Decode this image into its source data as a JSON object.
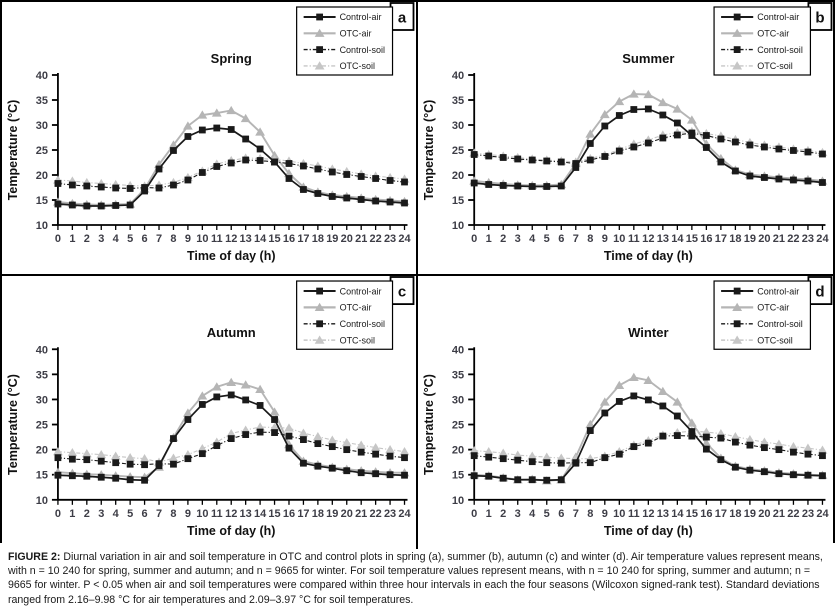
{
  "figure": {
    "caption_label": "FIGURE 2:",
    "caption_text": "Diurnal variation in air and soil temperature in OTC and control plots in spring (a), summer (b), autumn (c) and winter (d). Air temperature values represent means, with n = 10 240 for spring, summer and autumn; and n = 9665 for winter. For soil temperature values represent means, with n = 10 240 for spring, summer and autumn; n = 9665 for winter. P < 0.05 when air and soil temperatures were compared within three hour intervals in each the four seasons (Wilcoxon signed-rank test). Standard deviations ranged from 2.16–9.98 °C for air temperatures and 2.09–3.97 °C for soil temperatures."
  },
  "colors": {
    "series_black": "#1a1a1a",
    "series_gray": "#b5b5b5",
    "axis": "#000000",
    "tick_label": "#3d3d46",
    "background": "#ffffff"
  },
  "chart_data": [
    {
      "type": "line",
      "panel_label": "a",
      "title": "Spring",
      "xlabel": "Time of day (h)",
      "ylabel": "Temperature (°C)",
      "x": [
        0,
        1,
        2,
        3,
        4,
        5,
        6,
        7,
        8,
        9,
        10,
        11,
        12,
        13,
        14,
        15,
        16,
        17,
        18,
        19,
        20,
        21,
        22,
        23,
        24
      ],
      "ylim": [
        10,
        40
      ],
      "yticks": [
        10,
        15,
        20,
        25,
        30,
        35,
        40
      ],
      "grid": false,
      "legend_position": "top-right",
      "legend": [
        "Control-air",
        "OTC-air",
        "Control-soil",
        "OTC-soil"
      ],
      "series": [
        {
          "name": "Control-air",
          "values": [
            14.2,
            14.0,
            13.8,
            13.8,
            13.9,
            14.0,
            16.8,
            21.2,
            24.9,
            27.7,
            29.0,
            29.4,
            29.1,
            27.2,
            25.2,
            22.6,
            19.3,
            17.1,
            16.3,
            15.7,
            15.4,
            15.1,
            14.8,
            14.6,
            14.4
          ]
        },
        {
          "name": "OTC-air",
          "values": [
            14.6,
            14.3,
            14.1,
            14.0,
            14.1,
            14.2,
            17.2,
            22.1,
            26.0,
            29.8,
            32.0,
            32.4,
            32.9,
            31.3,
            28.6,
            23.9,
            20.3,
            17.6,
            16.6,
            16.0,
            15.7,
            15.4,
            15.1,
            14.9,
            14.7
          ]
        },
        {
          "name": "Control-soil",
          "values": [
            18.3,
            18.0,
            17.8,
            17.6,
            17.4,
            17.3,
            17.5,
            17.4,
            18.0,
            19.0,
            20.5,
            21.7,
            22.4,
            23.0,
            22.9,
            22.6,
            22.3,
            21.8,
            21.2,
            20.6,
            20.1,
            19.7,
            19.3,
            18.9,
            18.6
          ]
        },
        {
          "name": "OTC-soil",
          "values": [
            19.0,
            18.8,
            18.5,
            18.3,
            18.1,
            17.9,
            17.8,
            18.0,
            18.5,
            19.5,
            20.8,
            22.2,
            22.9,
            23.4,
            23.3,
            23.1,
            22.8,
            22.3,
            21.8,
            21.2,
            20.7,
            20.2,
            19.8,
            19.5,
            19.2
          ]
        }
      ]
    },
    {
      "type": "line",
      "panel_label": "b",
      "title": "Summer",
      "xlabel": "Time of day (h)",
      "ylabel": "Temperature (°C)",
      "x": [
        0,
        1,
        2,
        3,
        4,
        5,
        6,
        7,
        8,
        9,
        10,
        11,
        12,
        13,
        14,
        15,
        16,
        17,
        18,
        19,
        20,
        21,
        22,
        23,
        24
      ],
      "ylim": [
        10,
        40
      ],
      "yticks": [
        10,
        15,
        20,
        25,
        30,
        35,
        40
      ],
      "grid": false,
      "legend_position": "top-right",
      "legend": [
        "Control-air",
        "OTC-air",
        "Control-soil",
        "OTC-soil"
      ],
      "series": [
        {
          "name": "Control-air",
          "values": [
            18.4,
            18.1,
            17.9,
            17.8,
            17.7,
            17.7,
            17.8,
            21.5,
            26.3,
            29.8,
            31.9,
            33.1,
            33.2,
            32.0,
            30.4,
            27.9,
            25.5,
            22.6,
            20.8,
            19.8,
            19.5,
            19.2,
            19.0,
            18.8,
            18.5
          ]
        },
        {
          "name": "OTC-air",
          "values": [
            18.8,
            18.5,
            18.2,
            18.0,
            17.9,
            17.9,
            18.1,
            22.3,
            28.2,
            32.1,
            34.7,
            36.2,
            36.1,
            34.5,
            33.2,
            31.0,
            26.2,
            23.3,
            21.0,
            20.1,
            19.8,
            19.5,
            19.3,
            19.1,
            18.8
          ]
        },
        {
          "name": "Control-soil",
          "values": [
            24.1,
            23.8,
            23.5,
            23.2,
            23.0,
            22.8,
            22.6,
            22.3,
            23.0,
            23.7,
            24.8,
            25.6,
            26.4,
            27.4,
            28.0,
            28.4,
            27.9,
            27.2,
            26.6,
            26.0,
            25.6,
            25.2,
            24.9,
            24.6,
            24.2
          ]
        },
        {
          "name": "OTC-soil",
          "values": [
            24.4,
            24.1,
            23.8,
            23.5,
            23.2,
            23.0,
            22.8,
            22.6,
            23.3,
            24.0,
            25.1,
            26.2,
            27.0,
            28.0,
            28.5,
            28.7,
            28.3,
            27.8,
            27.1,
            26.5,
            26.0,
            25.6,
            25.2,
            24.9,
            24.5
          ]
        }
      ]
    },
    {
      "type": "line",
      "panel_label": "c",
      "title": "Autumn",
      "xlabel": "Time of day (h)",
      "ylabel": "Temperature (°C)",
      "x": [
        0,
        1,
        2,
        3,
        4,
        5,
        6,
        7,
        8,
        9,
        10,
        11,
        12,
        13,
        14,
        15,
        16,
        17,
        18,
        19,
        20,
        21,
        22,
        23,
        24
      ],
      "ylim": [
        10,
        40
      ],
      "yticks": [
        10,
        15,
        20,
        25,
        30,
        35,
        40
      ],
      "grid": false,
      "legend_position": "top-right",
      "legend": [
        "Control-air",
        "OTC-air",
        "Control-soil",
        "OTC-soil"
      ],
      "series": [
        {
          "name": "Control-air",
          "values": [
            14.9,
            14.8,
            14.7,
            14.5,
            14.3,
            14.0,
            13.9,
            16.8,
            22.2,
            26.0,
            29.0,
            30.5,
            30.9,
            29.9,
            28.8,
            26.0,
            20.3,
            17.3,
            16.7,
            16.3,
            15.8,
            15.4,
            15.2,
            15.0,
            14.9
          ]
        },
        {
          "name": "OTC-air",
          "values": [
            15.5,
            15.3,
            15.1,
            15.0,
            14.8,
            14.6,
            14.5,
            16.5,
            22.4,
            27.3,
            30.7,
            32.5,
            33.4,
            32.9,
            32.0,
            27.5,
            21.0,
            17.7,
            17.0,
            16.5,
            16.1,
            15.8,
            15.6,
            15.4,
            15.4
          ]
        },
        {
          "name": "Control-soil",
          "values": [
            18.4,
            18.1,
            18.0,
            17.7,
            17.4,
            17.1,
            17.0,
            17.2,
            17.1,
            18.2,
            19.2,
            20.8,
            22.2,
            23.0,
            23.5,
            23.4,
            22.7,
            22.0,
            21.2,
            20.6,
            20.0,
            19.5,
            19.1,
            18.7,
            18.4
          ]
        },
        {
          "name": "OTC-soil",
          "values": [
            19.6,
            19.4,
            19.2,
            19.0,
            18.7,
            18.4,
            18.2,
            17.5,
            18.3,
            19.0,
            20.2,
            21.5,
            23.2,
            23.9,
            24.5,
            24.4,
            24.3,
            23.3,
            22.6,
            21.9,
            21.4,
            20.9,
            20.4,
            20.0,
            19.6
          ]
        }
      ]
    },
    {
      "type": "line",
      "panel_label": "d",
      "title": "Winter",
      "xlabel": "Time of day (h)",
      "ylabel": "Temperature (°C)",
      "x": [
        0,
        1,
        2,
        3,
        4,
        5,
        6,
        7,
        8,
        9,
        10,
        11,
        12,
        13,
        14,
        15,
        16,
        17,
        18,
        19,
        20,
        21,
        22,
        23,
        24
      ],
      "ylim": [
        10,
        40
      ],
      "yticks": [
        10,
        15,
        20,
        25,
        30,
        35,
        40
      ],
      "grid": false,
      "legend_position": "top-right",
      "legend": [
        "Control-air",
        "OTC-air",
        "Control-soil",
        "OTC-soil"
      ],
      "series": [
        {
          "name": "Control-air",
          "values": [
            14.8,
            14.7,
            14.3,
            14.0,
            14.0,
            13.9,
            14.0,
            17.3,
            23.8,
            27.3,
            29.6,
            30.7,
            29.9,
            28.7,
            26.7,
            23.6,
            20.1,
            18.0,
            16.5,
            15.9,
            15.6,
            15.2,
            15.0,
            14.9,
            14.8
          ]
        },
        {
          "name": "OTC-air",
          "values": [
            15.0,
            14.8,
            14.4,
            14.0,
            14.1,
            13.8,
            14.0,
            18.5,
            25.0,
            29.5,
            32.8,
            34.4,
            33.8,
            31.6,
            29.5,
            25.3,
            21.3,
            18.3,
            16.7,
            16.1,
            15.8,
            15.4,
            15.2,
            15.0,
            14.9
          ]
        },
        {
          "name": "Control-soil",
          "values": [
            18.8,
            18.5,
            18.2,
            17.9,
            17.6,
            17.4,
            17.3,
            17.4,
            17.4,
            18.4,
            19.1,
            20.6,
            21.3,
            22.7,
            22.8,
            22.7,
            22.5,
            22.3,
            21.5,
            20.9,
            20.4,
            20.0,
            19.5,
            19.1,
            18.8
          ]
        },
        {
          "name": "OTC-soil",
          "values": [
            19.8,
            19.6,
            19.3,
            18.9,
            18.7,
            18.5,
            18.3,
            18.2,
            18.2,
            18.7,
            19.6,
            20.9,
            21.8,
            22.9,
            23.4,
            23.7,
            23.5,
            23.2,
            22.6,
            22.0,
            21.5,
            21.1,
            20.6,
            20.3,
            19.9
          ]
        }
      ]
    }
  ]
}
